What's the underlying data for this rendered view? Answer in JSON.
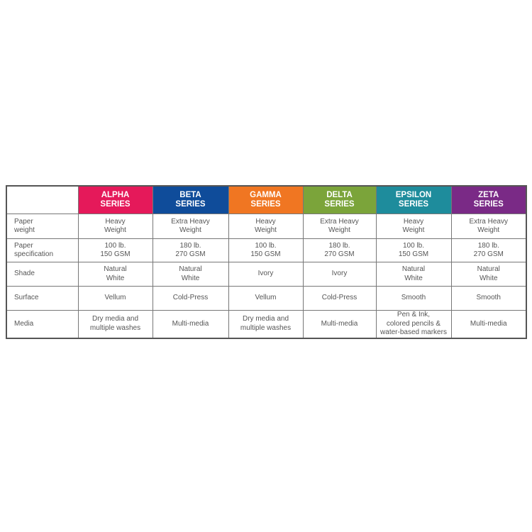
{
  "columns": [
    {
      "name": "ALPHA",
      "sub": "SERIES",
      "color": "#e5195a"
    },
    {
      "name": "BETA",
      "sub": "SERIES",
      "color": "#0f4c9a"
    },
    {
      "name": "GAMMA",
      "sub": "SERIES",
      "color": "#f07622"
    },
    {
      "name": "DELTA",
      "sub": "SERIES",
      "color": "#7ba43a"
    },
    {
      "name": "EPSILON",
      "sub": "SERIES",
      "color": "#1e8c9c"
    },
    {
      "name": "ZETA",
      "sub": "SERIES",
      "color": "#7a2a86"
    }
  ],
  "rows": [
    {
      "label": [
        "Paper",
        "weight"
      ],
      "cells": [
        [
          "Heavy",
          "Weight"
        ],
        [
          "Extra Heavy",
          "Weight"
        ],
        [
          "Heavy",
          "Weight"
        ],
        [
          "Extra Heavy",
          "Weight"
        ],
        [
          "Heavy",
          "Weight"
        ],
        [
          "Extra Heavy",
          "Weight"
        ]
      ]
    },
    {
      "label": [
        "Paper",
        "specification"
      ],
      "cells": [
        [
          "100 lb.",
          "150 GSM"
        ],
        [
          "180 lb.",
          "270 GSM"
        ],
        [
          "100 lb.",
          "150 GSM"
        ],
        [
          "180 lb.",
          "270 GSM"
        ],
        [
          "100 lb.",
          "150 GSM"
        ],
        [
          "180 lb.",
          "270 GSM"
        ]
      ]
    },
    {
      "label": [
        "Shade"
      ],
      "cells": [
        [
          "Natural",
          "White"
        ],
        [
          "Natural",
          "White"
        ],
        [
          "Ivory"
        ],
        [
          "Ivory"
        ],
        [
          "Natural",
          "White"
        ],
        [
          "Natural",
          "White"
        ]
      ]
    },
    {
      "label": [
        "Surface"
      ],
      "cells": [
        [
          "Vellum"
        ],
        [
          "Cold-Press"
        ],
        [
          "Vellum"
        ],
        [
          "Cold-Press"
        ],
        [
          "Smooth"
        ],
        [
          "Smooth"
        ]
      ]
    },
    {
      "label": [
        "Media"
      ],
      "cells": [
        [
          "Dry media and",
          "multiple washes"
        ],
        [
          "Multi-media"
        ],
        [
          "Dry media and",
          "multiple washes"
        ],
        [
          "Multi-media"
        ],
        [
          "Pen & Ink,",
          "colored pencils &",
          "water-based markers"
        ],
        [
          "Multi-media"
        ]
      ]
    }
  ]
}
